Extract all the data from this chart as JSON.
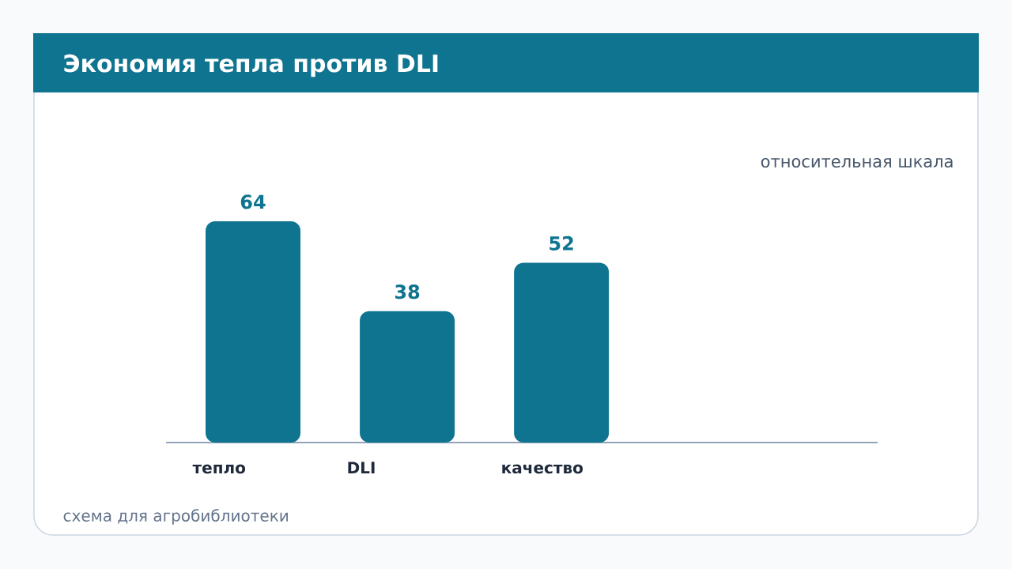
{
  "chart_data": {
    "type": "bar",
    "title": "Экономия тепла против DLI",
    "subtitle": "относительная шкала",
    "categories": [
      "тепло",
      "DLI",
      "качество"
    ],
    "values": [
      64,
      38,
      52
    ],
    "color": "#0e7490",
    "data_labels": true,
    "annotations": [
      "схема для агробиблиотеки"
    ]
  }
}
